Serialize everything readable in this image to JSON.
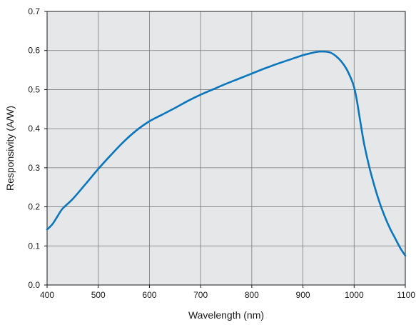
{
  "chart_data": {
    "type": "line",
    "title": "",
    "xlabel": "Wavelength (nm)",
    "ylabel": "Responsivity (A/W)",
    "xlim": [
      400,
      1100
    ],
    "ylim": [
      0.0,
      0.7
    ],
    "x_ticks": [
      "400",
      "500",
      "600",
      "700",
      "800",
      "900",
      "1000",
      "1100"
    ],
    "y_ticks": [
      "0.0",
      "0.1",
      "0.2",
      "0.3",
      "0.4",
      "0.5",
      "0.6",
      "0.7"
    ],
    "grid": true,
    "legend": "none",
    "background_color": "#e6e7e8",
    "line_color": "#0a76bd",
    "series": [
      {
        "x": [
          400,
          410,
          420,
          430,
          450,
          475,
          500,
          525,
          550,
          575,
          600,
          625,
          650,
          675,
          700,
          725,
          750,
          775,
          800,
          825,
          850,
          875,
          900,
          915,
          930,
          945,
          955,
          965,
          975,
          985,
          995,
          1000,
          1005,
          1010,
          1015,
          1020,
          1030,
          1040,
          1050,
          1060,
          1070,
          1080,
          1090,
          1100
        ],
        "y": [
          0.142,
          0.155,
          0.175,
          0.195,
          0.22,
          0.258,
          0.297,
          0.333,
          0.367,
          0.396,
          0.419,
          0.436,
          0.453,
          0.471,
          0.487,
          0.501,
          0.515,
          0.528,
          0.541,
          0.554,
          0.566,
          0.577,
          0.588,
          0.593,
          0.597,
          0.597,
          0.594,
          0.585,
          0.572,
          0.553,
          0.525,
          0.506,
          0.475,
          0.435,
          0.395,
          0.358,
          0.3,
          0.252,
          0.21,
          0.175,
          0.145,
          0.12,
          0.095,
          0.075
        ]
      }
    ]
  }
}
